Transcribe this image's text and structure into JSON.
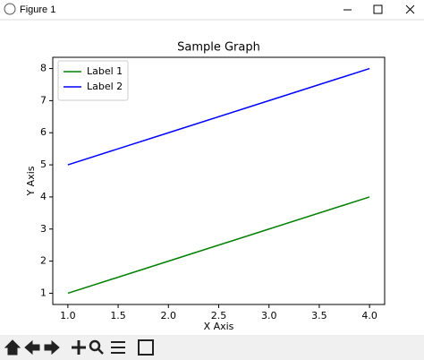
{
  "window": {
    "title": "Figure 1"
  },
  "chart_data": {
    "type": "line",
    "title": "Sample Graph",
    "x_label": "X Axis",
    "y_label": "Y Axis",
    "x": [
      1,
      2,
      3,
      4
    ],
    "series": [
      {
        "name": "Label 1",
        "color": "#008000",
        "values": [
          1,
          2,
          3,
          4
        ]
      },
      {
        "name": "Label 2",
        "color": "#0000ff",
        "values": [
          5,
          6,
          7,
          8
        ]
      }
    ],
    "xlim": [
      0.85,
      4.15
    ],
    "xticks": [
      {
        "value": 1,
        "label": "1.0"
      },
      {
        "value": 1.5,
        "label": "1.5"
      },
      {
        "value": 2,
        "label": "2.0"
      },
      {
        "value": 2.5,
        "label": "2.5"
      },
      {
        "value": 3,
        "label": "3.0"
      },
      {
        "value": 3.5,
        "label": "3.5"
      },
      {
        "value": 4,
        "label": "4.0"
      }
    ],
    "ylim": [
      0.65,
      8.35
    ],
    "yticks": [
      1,
      2,
      3,
      4,
      5,
      6,
      7,
      8
    ],
    "legend": "upper left",
    "grid": false
  }
}
